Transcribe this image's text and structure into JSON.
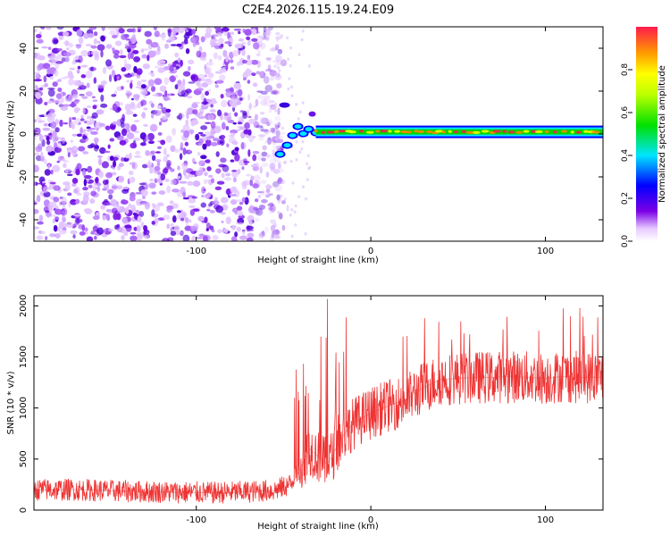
{
  "title": "C2E4.2026.115.19.24.E09",
  "chart_data": [
    {
      "type": "heatmap",
      "xlabel": "Height of straight line (km)",
      "ylabel": "Frequency (Hz)",
      "xlim": [
        -193,
        133
      ],
      "ylim": [
        -50,
        50
      ],
      "xticks": [
        -100,
        0,
        100
      ],
      "yticks": [
        -40,
        -20,
        0,
        20,
        40
      ],
      "colorbar": {
        "label": "Normalized spectral amplitude",
        "range": [
          0,
          1
        ],
        "ticks": [
          0.0,
          0.2,
          0.4,
          0.6,
          0.8
        ]
      },
      "features": {
        "noise_region_x": [
          -193,
          -55
        ],
        "signal_line_frequency_hz": 1,
        "signal_start_x": -52,
        "signal_end_x": 133
      }
    },
    {
      "type": "line",
      "xlabel": "Height of straight line (km)",
      "ylabel": "SNR (10 * v/v)",
      "xlim": [
        -193,
        133
      ],
      "ylim": [
        0,
        2100
      ],
      "xticks": [
        -100,
        0,
        100
      ],
      "yticks": [
        0,
        500,
        1000,
        1500,
        2000
      ],
      "series": [
        {
          "name": "SNR",
          "color": "#ee3333",
          "x": [
            -193,
            -170,
            -150,
            -130,
            -110,
            -90,
            -70,
            -55,
            -45,
            -40,
            -35,
            -30,
            -25,
            -20,
            -15,
            -10,
            -5,
            0,
            10,
            20,
            30,
            40,
            50,
            60,
            70,
            80,
            90,
            100,
            110,
            120,
            133
          ],
          "values": [
            200,
            200,
            190,
            180,
            175,
            170,
            180,
            195,
            260,
            420,
            600,
            520,
            450,
            600,
            750,
            850,
            900,
            950,
            1020,
            1080,
            1200,
            1280,
            1290,
            1300,
            1300,
            1310,
            1300,
            1290,
            1310,
            1300,
            1300
          ]
        }
      ]
    }
  ]
}
